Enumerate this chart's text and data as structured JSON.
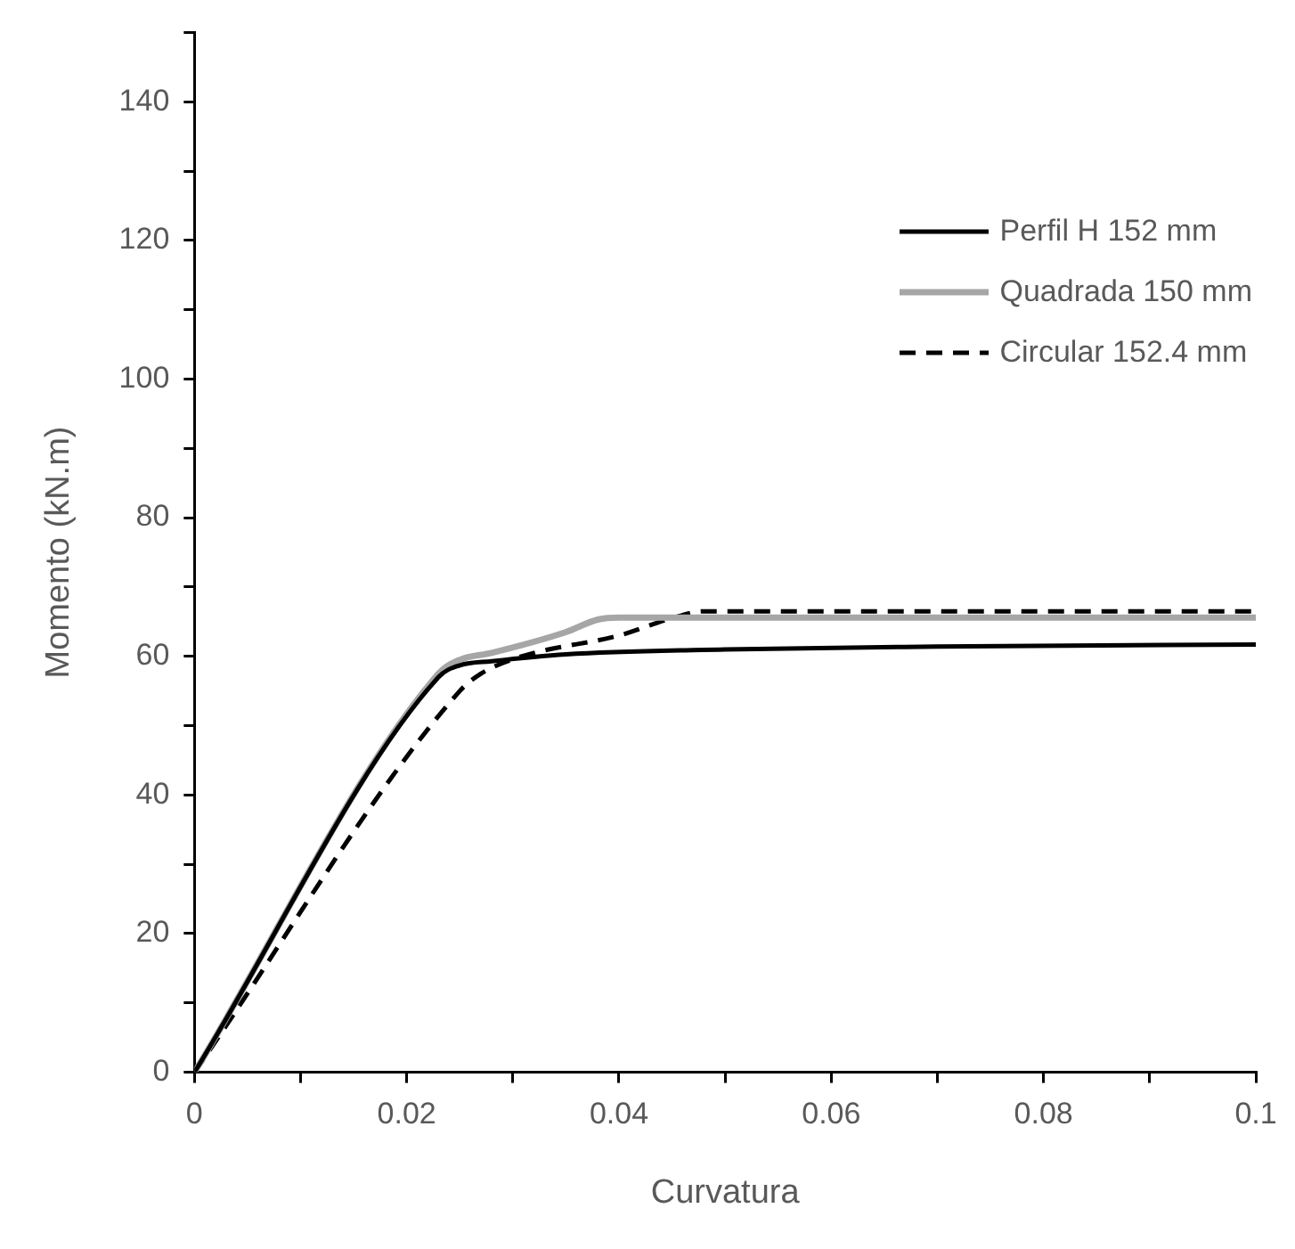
{
  "chart_data": {
    "type": "line",
    "xlabel": "Curvatura",
    "ylabel": "Momento (kN.m)",
    "xlim": [
      0,
      0.1
    ],
    "xticks": [
      0,
      {
        "value": 0.01,
        "label": null
      },
      0.02,
      {
        "value": 0.03,
        "label": null
      },
      0.04,
      {
        "value": 0.05,
        "label": null
      },
      0.06,
      {
        "value": 0.07,
        "label": null
      },
      0.08,
      {
        "value": 0.09,
        "label": null
      },
      0.1
    ],
    "ylim": [
      0,
      150
    ],
    "yticks": [
      0,
      {
        "value": 10,
        "label": null
      },
      20,
      {
        "value": 30,
        "label": null
      },
      40,
      {
        "value": 50,
        "label": null
      },
      60,
      {
        "value": 70,
        "label": null
      },
      80,
      {
        "value": 90,
        "label": null
      },
      100,
      {
        "value": 110,
        "label": null
      },
      120,
      {
        "value": 130,
        "label": null
      },
      140,
      {
        "value": 150,
        "label": null
      }
    ],
    "grid": false,
    "legend": "top right",
    "marker": "none",
    "series": [
      {
        "name": "Perfil H 152 mm",
        "color": "#000000",
        "line_style": "solid",
        "x": [
          0,
          0.023,
          0.025,
          0.028,
          0.035,
          0.05,
          0.07,
          0.1
        ],
        "values": [
          0,
          57,
          58.7,
          59.3,
          60.3,
          61,
          61.4,
          61.7
        ]
      },
      {
        "name": "Quadrada 150 mm",
        "color": "#a6a6a6",
        "line_style": "solid",
        "x": [
          0,
          0.023,
          0.025,
          0.028,
          0.035,
          0.038,
          0.04,
          0.1
        ],
        "values": [
          0,
          57.5,
          59.5,
          60.5,
          63.5,
          65.3,
          65.6,
          65.6
        ]
      },
      {
        "name": "Circular 152.4 mm",
        "color": "#000000",
        "line_style": "dashed",
        "x": [
          0,
          0.025,
          0.027,
          0.029,
          0.032,
          0.04,
          0.045,
          0.048,
          0.1
        ],
        "values": [
          0,
          55,
          57.5,
          59,
          60.5,
          63,
          65.5,
          66.5,
          66.5
        ]
      }
    ]
  }
}
